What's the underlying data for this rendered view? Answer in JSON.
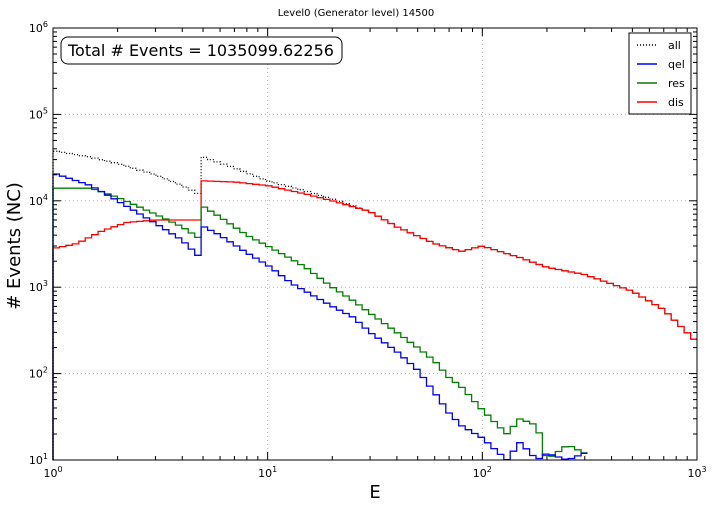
{
  "chart_data": {
    "type": "line",
    "step": true,
    "title": "Level0 (Generator level) 14500",
    "xlabel": "E",
    "ylabel": "# Events (NC)",
    "xscale": "log",
    "yscale": "log",
    "xlim": [
      1,
      1000
    ],
    "ylim": [
      10,
      1000000
    ],
    "grid": true,
    "legend_position": "top-right",
    "annotation": "Total # Events = 1035099.62256",
    "x_ticks": [
      {
        "base": "10",
        "exp": "0",
        "value": 1
      },
      {
        "base": "10",
        "exp": "1",
        "value": 10
      },
      {
        "base": "10",
        "exp": "2",
        "value": 100
      },
      {
        "base": "10",
        "exp": "3",
        "value": 1000
      }
    ],
    "y_ticks": [
      {
        "base": "10",
        "exp": "1",
        "value": 10
      },
      {
        "base": "10",
        "exp": "2",
        "value": 100
      },
      {
        "base": "10",
        "exp": "3",
        "value": 1000
      },
      {
        "base": "10",
        "exp": "4",
        "value": 10000
      },
      {
        "base": "10",
        "exp": "5",
        "value": 100000
      },
      {
        "base": "10",
        "exp": "6",
        "value": 1000000
      }
    ],
    "series": [
      {
        "name": "all",
        "color": "#000000",
        "dash": "dotted",
        "points": [
          [
            1,
            38000
          ],
          [
            1.5,
            32000
          ],
          [
            2,
            27000
          ],
          [
            3,
            20000
          ],
          [
            4,
            15000
          ],
          [
            4.95,
            11500
          ],
          [
            5.05,
            32000
          ],
          [
            7,
            24000
          ],
          [
            10,
            17000
          ],
          [
            15,
            13000
          ],
          [
            20,
            10500
          ],
          [
            30,
            7500
          ],
          [
            40,
            5000
          ],
          [
            60,
            3200
          ],
          [
            80,
            2600
          ],
          [
            100,
            3000
          ],
          [
            150,
            2200
          ],
          [
            200,
            1700
          ],
          [
            300,
            1400
          ],
          [
            500,
            900
          ],
          [
            700,
            550
          ],
          [
            1000,
            230
          ]
        ]
      },
      {
        "name": "qel",
        "color": "#0000ff",
        "dash": "solid",
        "points": [
          [
            1,
            21000
          ],
          [
            1.5,
            15000
          ],
          [
            2,
            10000
          ],
          [
            3,
            5500
          ],
          [
            4,
            3500
          ],
          [
            4.95,
            2100
          ],
          [
            5.05,
            5000
          ],
          [
            6,
            4000
          ],
          [
            8,
            2500
          ],
          [
            10,
            1800
          ],
          [
            13,
            1100
          ],
          [
            15,
            900
          ],
          [
            20,
            600
          ],
          [
            25,
            450
          ],
          [
            30,
            300
          ],
          [
            40,
            180
          ],
          [
            50,
            110
          ],
          [
            60,
            60
          ],
          [
            70,
            35
          ],
          [
            80,
            25
          ],
          [
            100,
            18
          ],
          [
            130,
            10
          ],
          [
            150,
            16
          ],
          [
            180,
            10
          ],
          [
            200,
            12
          ],
          [
            250,
            10
          ],
          [
            300,
            12
          ]
        ]
      },
      {
        "name": "res",
        "color": "#008000",
        "dash": "solid",
        "points": [
          [
            1,
            14000
          ],
          [
            1.5,
            14000
          ],
          [
            2,
            11000
          ],
          [
            3,
            7000
          ],
          [
            4,
            5000
          ],
          [
            4.95,
            3500
          ],
          [
            5.05,
            8500
          ],
          [
            6,
            6500
          ],
          [
            8,
            4000
          ],
          [
            10,
            3000
          ],
          [
            13,
            2100
          ],
          [
            15,
            1700
          ],
          [
            20,
            1000
          ],
          [
            25,
            700
          ],
          [
            30,
            500
          ],
          [
            40,
            300
          ],
          [
            50,
            200
          ],
          [
            60,
            140
          ],
          [
            70,
            90
          ],
          [
            80,
            70
          ],
          [
            100,
            38
          ],
          [
            130,
            20
          ],
          [
            150,
            30
          ],
          [
            180,
            25
          ],
          [
            200,
            10
          ],
          [
            250,
            15
          ],
          [
            300,
            12
          ]
        ]
      },
      {
        "name": "dis",
        "color": "#ff0000",
        "dash": "solid",
        "points": [
          [
            1,
            2800
          ],
          [
            1.3,
            3200
          ],
          [
            1.7,
            4500
          ],
          [
            2.2,
            5600
          ],
          [
            3,
            6000
          ],
          [
            4,
            6000
          ],
          [
            4.95,
            6000
          ],
          [
            5.05,
            17000
          ],
          [
            7,
            16500
          ],
          [
            10,
            15000
          ],
          [
            15,
            12000
          ],
          [
            20,
            10000
          ],
          [
            30,
            7500
          ],
          [
            40,
            5000
          ],
          [
            60,
            3200
          ],
          [
            80,
            2600
          ],
          [
            100,
            3000
          ],
          [
            150,
            2200
          ],
          [
            200,
            1700
          ],
          [
            300,
            1400
          ],
          [
            500,
            900
          ],
          [
            700,
            550
          ],
          [
            1000,
            230
          ]
        ]
      }
    ]
  }
}
